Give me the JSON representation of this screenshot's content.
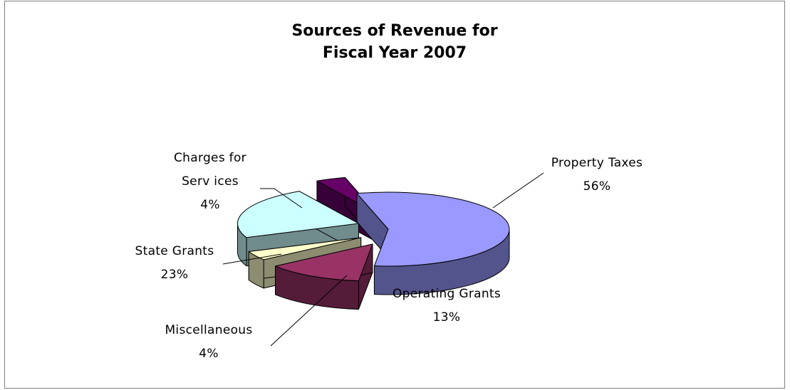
{
  "chart_data": {
    "type": "pie",
    "title": [
      "Sources of Revenue for",
      "Fiscal Year 2007"
    ],
    "categories": [
      "Property Taxes",
      "Operating Grants",
      "Miscellaneous",
      "State Grants",
      "Charges for Services"
    ],
    "values": [
      56,
      13,
      4,
      23,
      4
    ],
    "percent_labels": [
      "56%",
      "13%",
      "4%",
      "23%",
      "4%"
    ],
    "label_lines": {
      "property": "Property Taxes",
      "operating": "Operating Grants",
      "misc": "Miscellaneous",
      "state": "State Grants",
      "charges_1": "Charges for",
      "charges_2": "Serv ices"
    },
    "legend": "none",
    "style": "3d-exploded",
    "colors": {
      "Property Taxes": "#9999ff",
      "Operating Grants": "#993366",
      "Miscellaneous": "#ffffcc",
      "State Grants": "#ccffff",
      "Charges for Services": "#660066"
    }
  }
}
